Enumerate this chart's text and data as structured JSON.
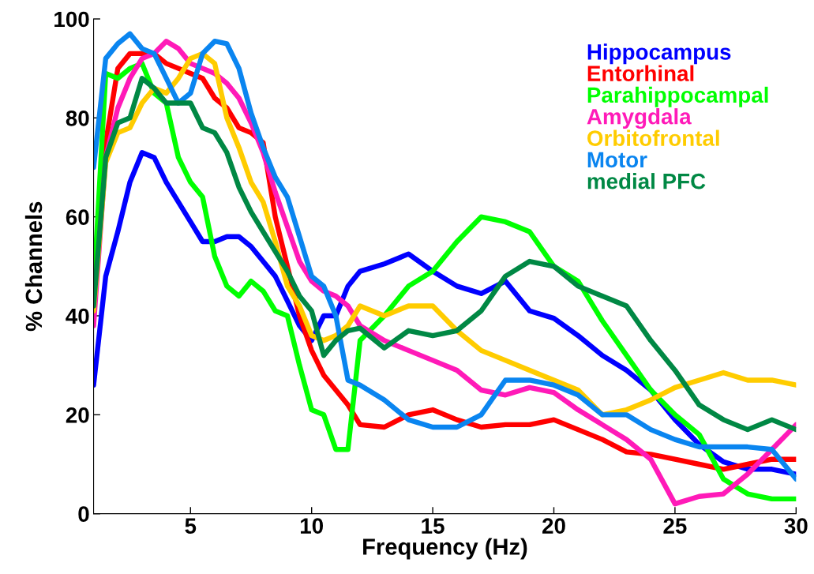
{
  "chart_data": {
    "type": "line",
    "xlabel": "Frequency (Hz)",
    "ylabel": "% Channels",
    "x": [
      1,
      1.5,
      2,
      2.5,
      3,
      3.5,
      4,
      4.5,
      5,
      5.5,
      6,
      6.5,
      7,
      7.5,
      8,
      8.5,
      9,
      9.5,
      10,
      10.5,
      11,
      11.5,
      12,
      13,
      14,
      15,
      16,
      17,
      18,
      19,
      20,
      21,
      22,
      23,
      24,
      25,
      26,
      27,
      28,
      29,
      30
    ],
    "series": [
      {
        "name": "Hippocampus",
        "color": "#0000ff",
        "values": [
          26,
          48,
          57,
          67,
          73,
          72,
          67,
          63,
          59,
          55,
          55,
          56,
          56,
          54,
          51,
          48,
          43,
          38,
          35,
          40,
          40,
          46,
          49,
          50.5,
          52.5,
          49,
          46,
          44.5,
          47,
          41,
          39.5,
          36,
          32,
          29,
          25,
          19,
          14,
          10.5,
          9,
          9,
          8
        ]
      },
      {
        "name": "Entorhinal",
        "color": "#ff0000",
        "values": [
          42,
          75,
          90,
          93,
          93,
          93,
          91,
          90,
          89,
          88,
          84,
          82,
          78,
          77,
          75,
          60,
          50,
          40,
          33,
          28,
          25,
          22,
          18,
          17.5,
          20,
          21,
          19,
          17.5,
          18,
          18,
          19,
          17,
          15,
          12.5,
          12,
          11,
          10,
          9,
          10,
          11,
          11
        ]
      },
      {
        "name": "Parahippocampal",
        "color": "#00ff00",
        "values": [
          45,
          89,
          88,
          90,
          91,
          85,
          83,
          72,
          67,
          64,
          52,
          46,
          44,
          47,
          45,
          41,
          40,
          30,
          21,
          20,
          13,
          13,
          35,
          40,
          46,
          49,
          55,
          60,
          59,
          57,
          50,
          47,
          39,
          32,
          25,
          20,
          16,
          7,
          4,
          3,
          3
        ]
      },
      {
        "name": "Amygdala",
        "color": "#ff1ab8",
        "values": [
          38,
          72,
          82,
          88,
          92,
          93,
          95.5,
          94,
          91,
          90,
          89,
          87,
          84,
          79,
          73,
          65,
          58,
          51,
          47,
          45,
          44,
          42,
          38,
          35,
          33,
          31,
          29,
          25,
          24,
          25.5,
          24.5,
          21,
          18,
          15,
          11,
          2,
          3.5,
          4,
          8,
          13,
          18
        ]
      },
      {
        "name": "Orbitofrontal",
        "color": "#ffcc00",
        "values": [
          41,
          71,
          77,
          78,
          83,
          86,
          85,
          88,
          92,
          93,
          91,
          80,
          74,
          67,
          63,
          55,
          46,
          42,
          36,
          35,
          36,
          38,
          42,
          40,
          42,
          42,
          37,
          33,
          31,
          29,
          27,
          25,
          20,
          21,
          23,
          25.5,
          27,
          28.5,
          27,
          27,
          26
        ]
      },
      {
        "name": "Motor",
        "color": "#0a85f0",
        "values": [
          70,
          92,
          95,
          97,
          94,
          93,
          88,
          83,
          85,
          93,
          95.5,
          95,
          90,
          81,
          74,
          68,
          64,
          56,
          48,
          46,
          40,
          27,
          26,
          23,
          19,
          17.5,
          17.5,
          20,
          27,
          27,
          26,
          24,
          20,
          20,
          17,
          15,
          13.5,
          13.5,
          13.5,
          13,
          7
        ]
      },
      {
        "name": "medial PFC",
        "color": "#008844",
        "values": [
          42,
          72,
          79,
          80,
          88,
          86,
          83,
          83,
          83,
          78,
          77,
          73,
          66,
          61,
          57,
          53,
          49,
          44,
          41,
          32,
          35,
          37,
          37.5,
          33.5,
          37,
          36,
          37,
          41,
          48,
          51,
          50,
          46,
          44,
          42,
          35,
          29,
          22,
          19,
          17,
          19,
          17
        ]
      }
    ],
    "xlim": [
      1,
      30
    ],
    "xticks": [
      5,
      10,
      15,
      20,
      25,
      30
    ],
    "ylim": [
      0,
      100
    ],
    "yticks": [
      0,
      20,
      40,
      60,
      80,
      100
    ],
    "grid": false,
    "legend": "top right"
  }
}
